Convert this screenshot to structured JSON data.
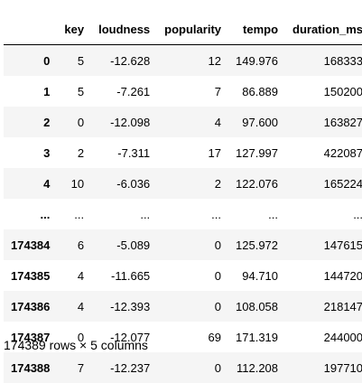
{
  "table": {
    "columns": [
      "key",
      "loudness",
      "popularity",
      "tempo",
      "duration_ms"
    ],
    "rows": [
      {
        "index": "0",
        "cells": [
          "5",
          "-12.628",
          "12",
          "149.976",
          "168333"
        ]
      },
      {
        "index": "1",
        "cells": [
          "5",
          "-7.261",
          "7",
          "86.889",
          "150200"
        ]
      },
      {
        "index": "2",
        "cells": [
          "0",
          "-12.098",
          "4",
          "97.600",
          "163827"
        ]
      },
      {
        "index": "3",
        "cells": [
          "2",
          "-7.311",
          "17",
          "127.997",
          "422087"
        ]
      },
      {
        "index": "4",
        "cells": [
          "10",
          "-6.036",
          "2",
          "122.076",
          "165224"
        ]
      },
      {
        "index": "...",
        "cells": [
          "...",
          "...",
          "...",
          "...",
          "..."
        ]
      },
      {
        "index": "174384",
        "cells": [
          "6",
          "-5.089",
          "0",
          "125.972",
          "147615"
        ]
      },
      {
        "index": "174385",
        "cells": [
          "4",
          "-11.665",
          "0",
          "94.710",
          "144720"
        ]
      },
      {
        "index": "174386",
        "cells": [
          "4",
          "-12.393",
          "0",
          "108.058",
          "218147"
        ]
      },
      {
        "index": "174387",
        "cells": [
          "0",
          "-12.077",
          "69",
          "171.319",
          "244000"
        ]
      },
      {
        "index": "174388",
        "cells": [
          "7",
          "-12.237",
          "0",
          "112.208",
          "197710"
        ]
      }
    ]
  },
  "shape_label": "174389 rows × 5 columns"
}
